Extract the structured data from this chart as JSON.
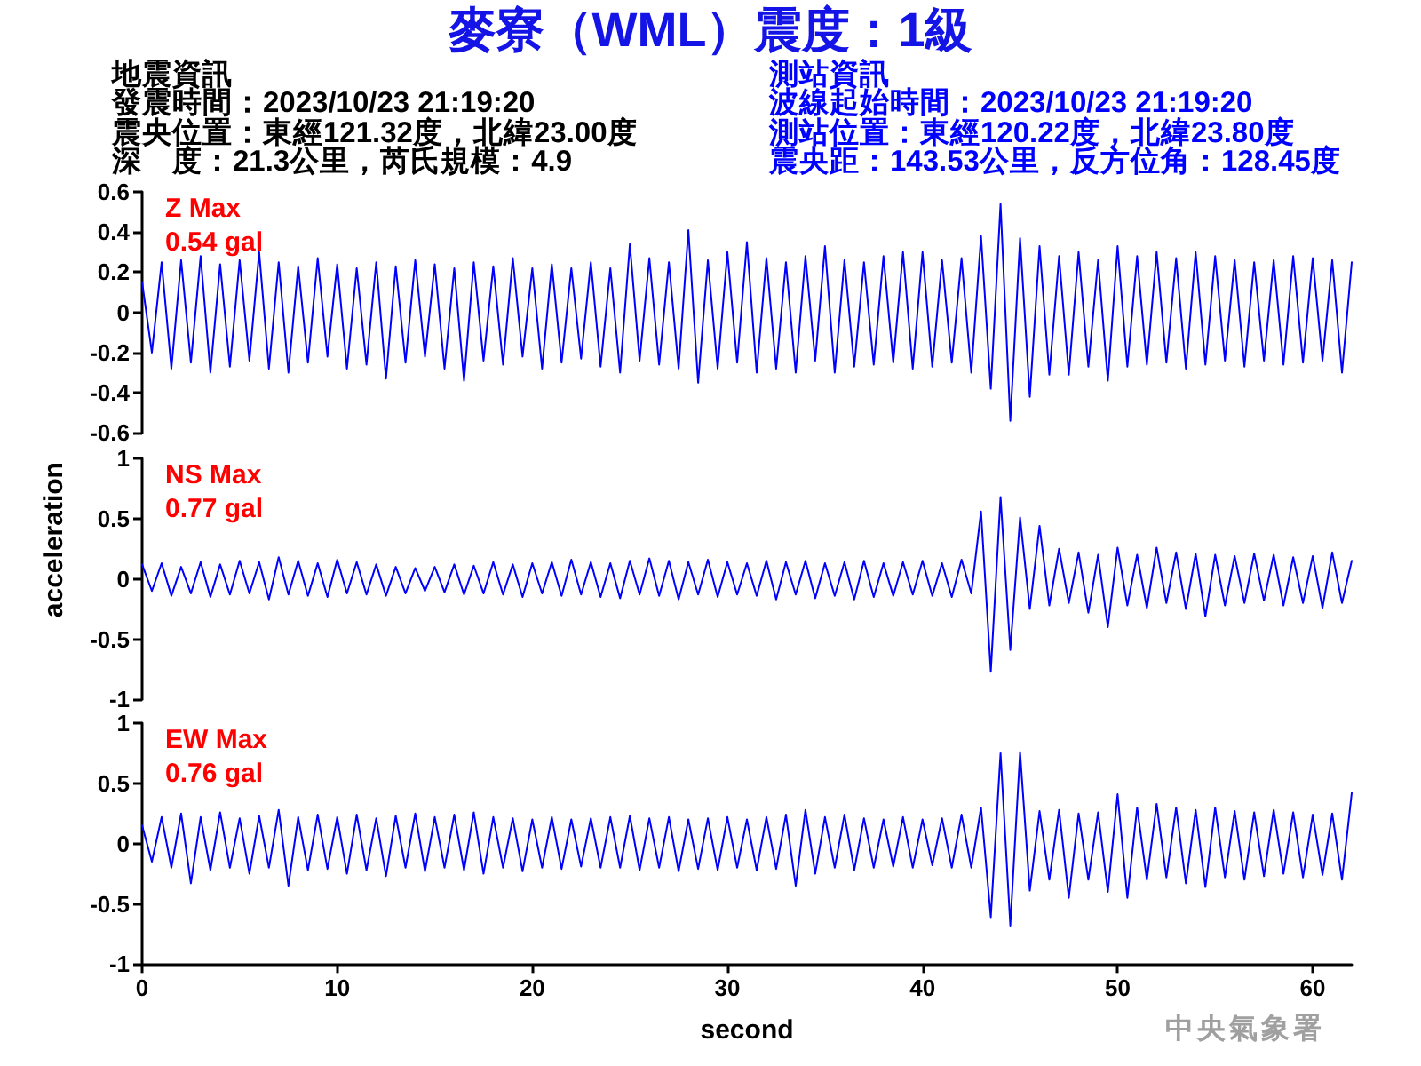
{
  "chart_data": [
    {
      "type": "other",
      "title": "麥寮（WML）震度：1級",
      "annotations": [
        "地震資訊",
        "發震時間：2023/10/23 21:19:20",
        "震央位置：東經121.32度，北緯23.00度",
        "深　度：21.3公里，芮氏規模：4.9"
      ]
    },
    {
      "type": "other",
      "annotations": [
        "測站資訊",
        "波線起始時間：2023/10/23 21:19:20",
        "測站位置：東經120.22度，北緯23.80度",
        "震央距：143.53公里，反方位角：128.45度"
      ]
    },
    {
      "type": "line",
      "annotations": [
        "Z Max",
        "0.54 gal"
      ],
      "ylim": [
        -0.6,
        0.6
      ],
      "yticks": [
        -0.6,
        -0.4,
        -0.2,
        0,
        0.2,
        0.4,
        0.6
      ],
      "tick_labels": "y",
      "grid": false,
      "marker": "none",
      "line_style": "solid",
      "x": [
        0,
        0.5,
        1,
        1.5,
        2,
        2.5,
        3,
        3.5,
        4,
        4.5,
        5,
        5.5,
        6,
        6.5,
        7,
        7.5,
        8,
        8.5,
        9,
        9.5,
        10,
        10.5,
        11,
        11.5,
        12,
        12.5,
        13,
        13.5,
        14,
        14.5,
        15,
        15.5,
        16,
        16.5,
        17,
        17.5,
        18,
        18.5,
        19,
        19.5,
        20,
        20.5,
        21,
        21.5,
        22,
        22.5,
        23,
        23.5,
        24,
        24.5,
        25,
        25.5,
        26,
        26.5,
        27,
        27.5,
        28,
        28.5,
        29,
        29.5,
        30,
        30.5,
        31,
        31.5,
        32,
        32.5,
        33,
        33.5,
        34,
        34.5,
        35,
        35.5,
        36,
        36.5,
        37,
        37.5,
        38,
        38.5,
        39,
        39.5,
        40,
        40.5,
        41,
        41.5,
        42,
        42.5,
        43,
        43.5,
        44,
        44.5,
        45,
        45.5,
        46,
        46.5,
        47,
        47.5,
        48,
        48.5,
        49,
        49.5,
        50,
        50.5,
        51,
        51.5,
        52,
        52.5,
        53,
        53.5,
        54,
        54.5,
        55,
        55.5,
        56,
        56.5,
        57,
        57.5,
        58,
        58.5,
        59,
        59.5,
        60,
        60.5,
        61,
        61.5,
        62
      ],
      "series": [
        {
          "color": "#0000ff",
          "values": [
            0.15,
            -0.2,
            0.25,
            -0.28,
            0.26,
            -0.25,
            0.28,
            -0.3,
            0.24,
            -0.27,
            0.26,
            -0.24,
            0.3,
            -0.28,
            0.25,
            -0.3,
            0.23,
            -0.25,
            0.27,
            -0.22,
            0.24,
            -0.28,
            0.22,
            -0.26,
            0.25,
            -0.33,
            0.23,
            -0.25,
            0.26,
            -0.22,
            0.24,
            -0.28,
            0.22,
            -0.34,
            0.25,
            -0.24,
            0.23,
            -0.26,
            0.27,
            -0.22,
            0.22,
            -0.28,
            0.24,
            -0.25,
            0.22,
            -0.23,
            0.25,
            -0.27,
            0.22,
            -0.3,
            0.34,
            -0.24,
            0.27,
            -0.26,
            0.25,
            -0.28,
            0.41,
            -0.35,
            0.26,
            -0.28,
            0.3,
            -0.25,
            0.35,
            -0.3,
            0.27,
            -0.28,
            0.25,
            -0.3,
            0.28,
            -0.24,
            0.33,
            -0.3,
            0.26,
            -0.27,
            0.25,
            -0.26,
            0.28,
            -0.25,
            0.3,
            -0.28,
            0.3,
            -0.27,
            0.26,
            -0.25,
            0.27,
            -0.3,
            0.38,
            -0.38,
            0.54,
            -0.54,
            0.37,
            -0.42,
            0.33,
            -0.31,
            0.28,
            -0.31,
            0.3,
            -0.27,
            0.26,
            -0.34,
            0.33,
            -0.27,
            0.28,
            -0.26,
            0.3,
            -0.25,
            0.27,
            -0.28,
            0.3,
            -0.26,
            0.28,
            -0.24,
            0.26,
            -0.27,
            0.25,
            -0.24,
            0.26,
            -0.26,
            0.28,
            -0.25,
            0.27,
            -0.24,
            0.26,
            -0.3,
            0.25
          ]
        }
      ]
    },
    {
      "type": "line",
      "annotations": [
        "NS Max",
        "0.77 gal"
      ],
      "ylabel": "acceleration",
      "ylim": [
        -1,
        1
      ],
      "yticks": [
        -1,
        -0.5,
        0,
        0.5,
        1
      ],
      "tick_labels": "y",
      "grid": false,
      "marker": "none",
      "line_style": "solid",
      "x": [
        0,
        0.5,
        1,
        1.5,
        2,
        2.5,
        3,
        3.5,
        4,
        4.5,
        5,
        5.5,
        6,
        6.5,
        7,
        7.5,
        8,
        8.5,
        9,
        9.5,
        10,
        10.5,
        11,
        11.5,
        12,
        12.5,
        13,
        13.5,
        14,
        14.5,
        15,
        15.5,
        16,
        16.5,
        17,
        17.5,
        18,
        18.5,
        19,
        19.5,
        20,
        20.5,
        21,
        21.5,
        22,
        22.5,
        23,
        23.5,
        24,
        24.5,
        25,
        25.5,
        26,
        26.5,
        27,
        27.5,
        28,
        28.5,
        29,
        29.5,
        30,
        30.5,
        31,
        31.5,
        32,
        32.5,
        33,
        33.5,
        34,
        34.5,
        35,
        35.5,
        36,
        36.5,
        37,
        37.5,
        38,
        38.5,
        39,
        39.5,
        40,
        40.5,
        41,
        41.5,
        42,
        42.5,
        43,
        43.5,
        44,
        44.5,
        45,
        45.5,
        46,
        46.5,
        47,
        47.5,
        48,
        48.5,
        49,
        49.5,
        50,
        50.5,
        51,
        51.5,
        52,
        52.5,
        53,
        53.5,
        54,
        54.5,
        55,
        55.5,
        56,
        56.5,
        57,
        57.5,
        58,
        58.5,
        59,
        59.5,
        60,
        60.5,
        61,
        61.5,
        62
      ],
      "series": [
        {
          "color": "#0000ff",
          "values": [
            0.12,
            -0.1,
            0.13,
            -0.14,
            0.1,
            -0.12,
            0.14,
            -0.15,
            0.12,
            -0.13,
            0.15,
            -0.12,
            0.14,
            -0.17,
            0.18,
            -0.13,
            0.15,
            -0.14,
            0.13,
            -0.15,
            0.16,
            -0.12,
            0.14,
            -0.13,
            0.12,
            -0.14,
            0.1,
            -0.12,
            0.09,
            -0.1,
            0.1,
            -0.11,
            0.12,
            -0.13,
            0.11,
            -0.12,
            0.14,
            -0.13,
            0.12,
            -0.15,
            0.13,
            -0.12,
            0.14,
            -0.14,
            0.16,
            -0.13,
            0.14,
            -0.15,
            0.13,
            -0.16,
            0.15,
            -0.13,
            0.17,
            -0.14,
            0.15,
            -0.17,
            0.14,
            -0.13,
            0.16,
            -0.15,
            0.14,
            -0.13,
            0.13,
            -0.14,
            0.15,
            -0.17,
            0.14,
            -0.13,
            0.15,
            -0.16,
            0.13,
            -0.14,
            0.14,
            -0.17,
            0.15,
            -0.15,
            0.13,
            -0.14,
            0.14,
            -0.13,
            0.15,
            -0.14,
            0.13,
            -0.15,
            0.16,
            -0.12,
            0.56,
            -0.77,
            0.68,
            -0.59,
            0.51,
            -0.25,
            0.44,
            -0.22,
            0.25,
            -0.2,
            0.22,
            -0.28,
            0.2,
            -0.4,
            0.26,
            -0.22,
            0.2,
            -0.24,
            0.26,
            -0.2,
            0.22,
            -0.25,
            0.21,
            -0.31,
            0.2,
            -0.22,
            0.19,
            -0.2,
            0.21,
            -0.18,
            0.2,
            -0.22,
            0.18,
            -0.2,
            0.19,
            -0.24,
            0.22,
            -0.2,
            0.15
          ]
        }
      ]
    },
    {
      "type": "line",
      "annotations": [
        "EW Max",
        "0.76 gal"
      ],
      "xlabel": "second",
      "xlim": [
        0,
        62
      ],
      "xticks": [
        0,
        10,
        20,
        30,
        40,
        50,
        60
      ],
      "ylim": [
        -1,
        1
      ],
      "yticks": [
        -1,
        -0.5,
        0,
        0.5,
        1
      ],
      "grid": false,
      "marker": "none",
      "line_style": "solid",
      "x": [
        0,
        0.5,
        1,
        1.5,
        2,
        2.5,
        3,
        3.5,
        4,
        4.5,
        5,
        5.5,
        6,
        6.5,
        7,
        7.5,
        8,
        8.5,
        9,
        9.5,
        10,
        10.5,
        11,
        11.5,
        12,
        12.5,
        13,
        13.5,
        14,
        14.5,
        15,
        15.5,
        16,
        16.5,
        17,
        17.5,
        18,
        18.5,
        19,
        19.5,
        20,
        20.5,
        21,
        21.5,
        22,
        22.5,
        23,
        23.5,
        24,
        24.5,
        25,
        25.5,
        26,
        26.5,
        27,
        27.5,
        28,
        28.5,
        29,
        29.5,
        30,
        30.5,
        31,
        31.5,
        32,
        32.5,
        33,
        33.5,
        34,
        34.5,
        35,
        35.5,
        36,
        36.5,
        37,
        37.5,
        38,
        38.5,
        39,
        39.5,
        40,
        40.5,
        41,
        41.5,
        42,
        42.5,
        43,
        43.5,
        44,
        44.5,
        45,
        45.5,
        46,
        46.5,
        47,
        47.5,
        48,
        48.5,
        49,
        49.5,
        50,
        50.5,
        51,
        51.5,
        52,
        52.5,
        53,
        53.5,
        54,
        54.5,
        55,
        55.5,
        56,
        56.5,
        57,
        57.5,
        58,
        58.5,
        59,
        59.5,
        60,
        60.5,
        61,
        61.5,
        62
      ],
      "series": [
        {
          "color": "#0000ff",
          "values": [
            0.15,
            -0.15,
            0.22,
            -0.2,
            0.25,
            -0.33,
            0.22,
            -0.22,
            0.26,
            -0.2,
            0.21,
            -0.25,
            0.23,
            -0.2,
            0.28,
            -0.35,
            0.22,
            -0.22,
            0.24,
            -0.21,
            0.22,
            -0.25,
            0.24,
            -0.22,
            0.21,
            -0.27,
            0.23,
            -0.2,
            0.25,
            -0.23,
            0.22,
            -0.2,
            0.24,
            -0.22,
            0.26,
            -0.25,
            0.22,
            -0.2,
            0.21,
            -0.23,
            0.2,
            -0.2,
            0.22,
            -0.21,
            0.2,
            -0.19,
            0.21,
            -0.2,
            0.22,
            -0.2,
            0.23,
            -0.22,
            0.21,
            -0.2,
            0.22,
            -0.23,
            0.2,
            -0.21,
            0.21,
            -0.22,
            0.22,
            -0.2,
            0.2,
            -0.22,
            0.22,
            -0.21,
            0.24,
            -0.35,
            0.28,
            -0.25,
            0.22,
            -0.2,
            0.24,
            -0.22,
            0.21,
            -0.2,
            0.2,
            -0.19,
            0.22,
            -0.2,
            0.2,
            -0.18,
            0.21,
            -0.2,
            0.24,
            -0.2,
            0.3,
            -0.61,
            0.75,
            -0.68,
            0.76,
            -0.39,
            0.27,
            -0.3,
            0.28,
            -0.45,
            0.25,
            -0.3,
            0.26,
            -0.4,
            0.41,
            -0.45,
            0.3,
            -0.3,
            0.33,
            -0.28,
            0.3,
            -0.33,
            0.28,
            -0.36,
            0.3,
            -0.28,
            0.27,
            -0.3,
            0.26,
            -0.27,
            0.28,
            -0.25,
            0.26,
            -0.28,
            0.24,
            -0.26,
            0.25,
            -0.3,
            0.42
          ]
        }
      ]
    },
    {
      "type": "other",
      "annotations": [
        "中央氣象署"
      ]
    }
  ]
}
